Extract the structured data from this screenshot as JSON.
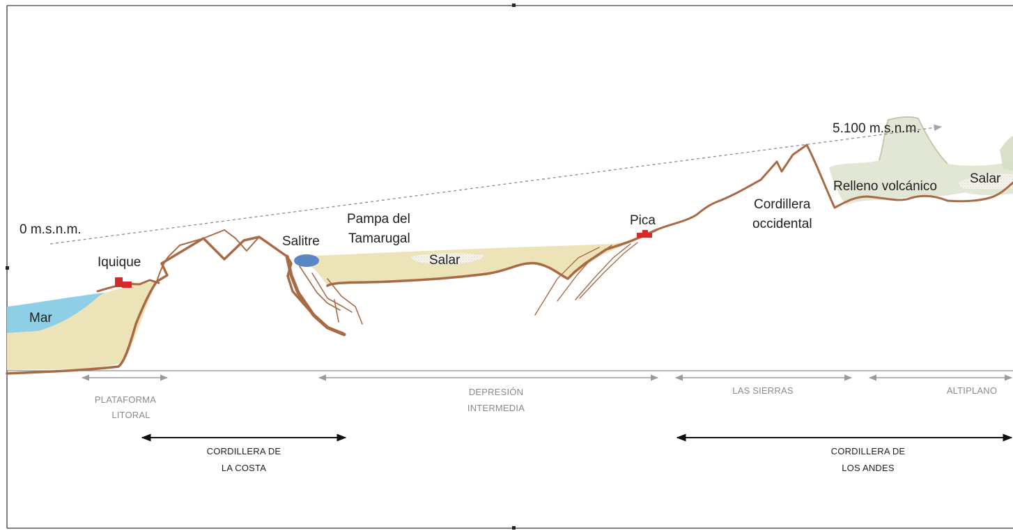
{
  "diagram": {
    "elevation_start": "0 m.s.n.m.",
    "elevation_end": "5.100 m.s.n.m.",
    "places": {
      "sea": "Mar",
      "iquique": "Iquique",
      "salitre": "Salitre",
      "pampa_line1": "Pampa del",
      "pampa_line2": "Tamarugal",
      "salar_middle": "Salar",
      "pica": "Pica",
      "cordillera_occ_line1": "Cordillera",
      "cordillera_occ_line2": "occidental",
      "relleno": "Relleno volcánico",
      "salar_altiplano": "Salar"
    },
    "zones": {
      "plataforma_line1": "PLATAFORMA",
      "plataforma_line2": "LITORAL",
      "depresion_line1": "DEPRESIÓN",
      "depresion_line2": "INTERMEDIA",
      "sierras": "LAS SIERRAS",
      "altiplano": "ALTIPLANO"
    },
    "ranges": {
      "costa_line1": "CORDILLERA DE",
      "costa_line2": "LA COSTA",
      "andes_line1": "CORDILLERA DE",
      "andes_line2": "LOS ANDES"
    },
    "colors": {
      "sediment": "#ece3b9",
      "sea": "#8ecfe6",
      "ridge": "#a86a45",
      "salitre": "#5b86c4",
      "town": "#d42a2a",
      "volcanic": "#dfe3cf",
      "zone_arrow": "#9a9a9a",
      "range_arrow": "#111111"
    }
  }
}
